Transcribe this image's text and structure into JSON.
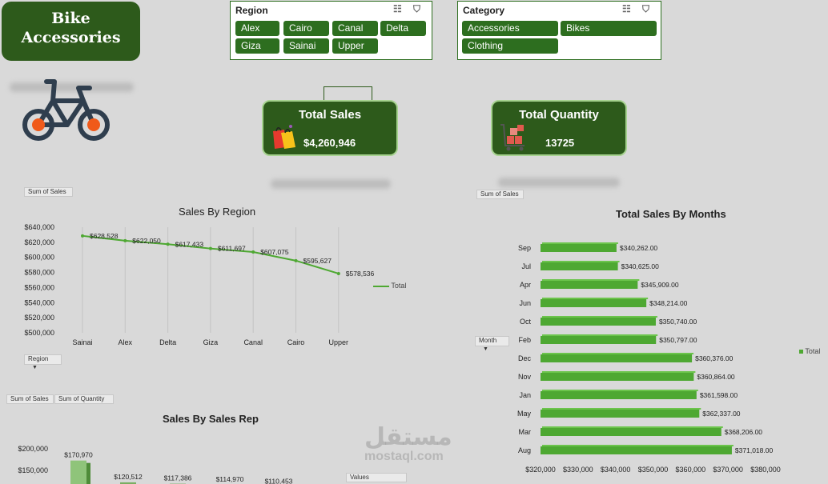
{
  "header": {
    "title_line1": "Bike",
    "title_line2": "Accessories"
  },
  "slicer_region": {
    "title": "Region",
    "icons": [
      "multi-select-icon",
      "clear-filter-icon"
    ],
    "items": [
      "Alex",
      "Cairo",
      "Canal",
      "Delta",
      "Giza",
      "Sainai",
      "Upper"
    ]
  },
  "slicer_category": {
    "title": "Category",
    "icons": [
      "multi-select-icon",
      "clear-filter-icon"
    ],
    "items": [
      "Accessories",
      "Bikes",
      "Clothing"
    ]
  },
  "kpi_sales": {
    "title": "Total Sales",
    "value": "$4,260,946",
    "icon": "shopping-bags-icon"
  },
  "kpi_quantity": {
    "title": "Total Quantity",
    "value": "13725",
    "icon": "cart-boxes-icon"
  },
  "field_buttons": {
    "sum_of_sales": "Sum of Sales",
    "sum_of_quantity": "Sum of Quantity",
    "region": "Region",
    "month": "Month",
    "values": "Values"
  },
  "colors": {
    "dark_green": "#2d5a1b",
    "slicer_green": "#2d6e1f",
    "series_green": "#4ea832",
    "background": "#d9d9d9"
  },
  "watermark": {
    "arabic": "مستقل",
    "latin": "mostaql.com"
  },
  "chart_data": [
    {
      "id": "region",
      "type": "line",
      "title": "Sales By Region",
      "categories": [
        "Sainai",
        "Alex",
        "Delta",
        "Giza",
        "Canal",
        "Cairo",
        "Upper"
      ],
      "series": [
        {
          "name": "Total",
          "values": [
            628528,
            622050,
            617433,
            611697,
            607075,
            595627,
            578536
          ]
        }
      ],
      "data_labels": [
        "$628,528",
        "$622,050",
        "$617,433",
        "$611,697",
        "$607,075",
        "$595,627",
        "$578,536"
      ],
      "y_ticks": [
        "$640,000",
        "$620,000",
        "$600,000",
        "$580,000",
        "$560,000",
        "$540,000",
        "$520,000",
        "$500,000"
      ],
      "ylim": [
        500000,
        640000
      ],
      "grid": "vertical",
      "legend": "right"
    },
    {
      "id": "months",
      "type": "bar",
      "orientation": "horizontal",
      "title": "Total Sales By Months",
      "categories": [
        "Sep",
        "Jul",
        "Apr",
        "Jun",
        "Oct",
        "Feb",
        "Dec",
        "Nov",
        "Jan",
        "May",
        "Mar",
        "Aug"
      ],
      "series": [
        {
          "name": "Total",
          "values": [
            340262,
            340625,
            345909,
            348214,
            350740,
            350797,
            360376,
            360864,
            361598,
            362337,
            368206,
            371018
          ]
        }
      ],
      "data_labels": [
        "$340,262.00",
        "$340,625.00",
        "$345,909.00",
        "$348,214.00",
        "$350,740.00",
        "$350,797.00",
        "$360,376.00",
        "$360,864.00",
        "$361,598.00",
        "$362,337.00",
        "$368,206.00",
        "$371,018.00"
      ],
      "x_ticks": [
        "$320,000",
        "$330,000",
        "$340,000",
        "$350,000",
        "$360,000",
        "$370,000",
        "$380,000"
      ],
      "xlim": [
        320000,
        380000
      ],
      "legend": "right"
    },
    {
      "id": "salesrep",
      "type": "bar",
      "title": "Sales By Sales Rep",
      "values": [
        170970,
        120512,
        117386,
        114970,
        110453
      ],
      "data_labels": [
        "$170,970",
        "$120,512",
        "$117,386",
        "$114,970",
        "$110,453"
      ],
      "y_ticks": [
        "$200,000",
        "$150,000"
      ],
      "partial": true
    }
  ]
}
